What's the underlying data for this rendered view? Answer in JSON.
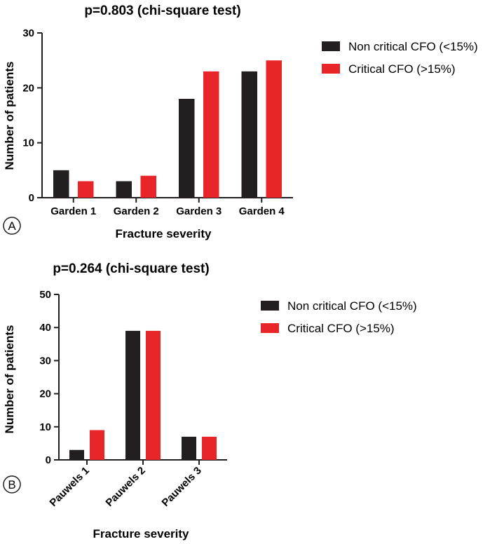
{
  "chart_data": [
    {
      "type": "bar",
      "panel_label": "A",
      "title": "p=0.803 (chi-square test)",
      "xlabel": "Fracture severity",
      "ylabel": "Number of patients",
      "categories": [
        "Garden 1",
        "Garden 2",
        "Garden 3",
        "Garden 4"
      ],
      "ylim": [
        0,
        30
      ],
      "yticks": [
        "0",
        "10",
        "20",
        "30"
      ],
      "series": [
        {
          "name": "Non critical CFO (<15%)",
          "color": "#231f20",
          "values": [
            5,
            3,
            18,
            23
          ]
        },
        {
          "name": "Critical CFO (>15%)",
          "color": "#e8262a",
          "values": [
            3,
            4,
            23,
            25
          ]
        }
      ],
      "legend_position": "top-right",
      "grid": false
    },
    {
      "type": "bar",
      "panel_label": "B",
      "title": "p=0.264 (chi-square test)",
      "xlabel": "Fracture severity",
      "ylabel": "Number of patients",
      "categories": [
        "Pauwels 1",
        "Pauwels 2",
        "Pauwels 3"
      ],
      "ylim": [
        0,
        50
      ],
      "yticks": [
        "0",
        "10",
        "20",
        "30",
        "40",
        "50"
      ],
      "series": [
        {
          "name": "Non critical CFO (<15%)",
          "color": "#231f20",
          "values": [
            3,
            39,
            7
          ]
        },
        {
          "name": "Critical CFO (>15%)",
          "color": "#e8262a",
          "values": [
            9,
            39,
            7
          ]
        }
      ],
      "legend_position": "top-right",
      "grid": false
    }
  ]
}
